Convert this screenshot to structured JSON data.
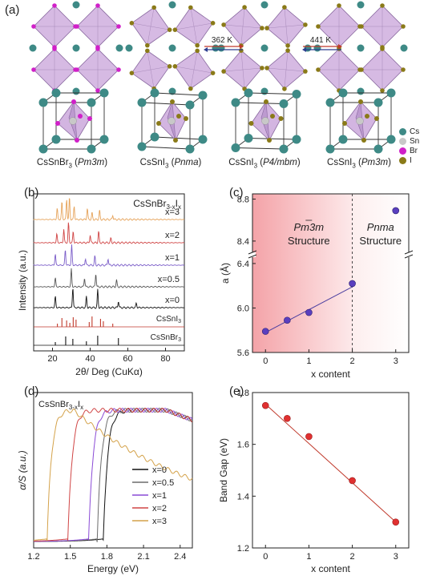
{
  "panels": {
    "a": {
      "label": "(a)",
      "transitions": [
        {
          "text": "362 K"
        },
        {
          "text": "441 K"
        }
      ],
      "captions": [
        {
          "compound": "CsSnBr",
          "sub": "3",
          "group": "Pm3m"
        },
        {
          "compound": "CsSnI",
          "sub": "3",
          "group": "Pnma"
        },
        {
          "compound": "CsSnI",
          "sub": "3",
          "group": "P4/mbm"
        },
        {
          "compound": "CsSnI",
          "sub": "3",
          "group": "Pm3m"
        }
      ],
      "atom_legend": [
        {
          "name": "Cs",
          "color": "#3e8a86"
        },
        {
          "name": "Sn",
          "color": "#c8c8c8"
        },
        {
          "name": "Br",
          "color": "#d020c8"
        },
        {
          "name": "I",
          "color": "#8a7a18"
        }
      ],
      "colors": {
        "octahedron": "#c8a3d9",
        "octahedron_edge": "#8a6aa0"
      }
    },
    "b": {
      "label": "(b)",
      "title_main": "CsSnBr",
      "title_sub": "3-x",
      "title_main2": "I",
      "title_sub2": "x",
      "xlabel": "2θ/ Deg (CuKα)",
      "ylabel": "Intensity (a.u.)",
      "curve_labels": [
        "x=3",
        "x=2",
        "x=1",
        "x=0.5",
        "x=0"
      ],
      "ref_labels": [
        "CsSnI3",
        "CsSnBr3"
      ],
      "ref_label_parts": [
        {
          "main": "CsSnI",
          "sub": "3"
        },
        {
          "main": "CsSnBr",
          "sub": "3"
        }
      ]
    },
    "c": {
      "label": "(c)",
      "region1_name": "Pm3m",
      "region1_word": "Structure",
      "region2_name": "Pnma",
      "region2_word": "Structure"
    },
    "d": {
      "label": "(d)",
      "title_main": "CsSnBr",
      "title_sub": "3-x",
      "title_main2": "I",
      "title_sub2": "x",
      "legend": [
        "x=0",
        "x=0.5",
        "x=1",
        "x=2",
        "x=3"
      ]
    },
    "e": {
      "label": "(e)"
    }
  },
  "chart_data": [
    {
      "panel": "b",
      "type": "line",
      "xlabel": "2θ/ Deg (CuKα)",
      "ylabel": "Intensity (a.u.)",
      "xlim": [
        10,
        90
      ],
      "xticks": [
        20,
        40,
        60,
        80
      ],
      "series": [
        {
          "name": "x=3",
          "color": "#e6a35a",
          "peaks": [
            [
              22.5,
              0.5
            ],
            [
              25.0,
              0.8
            ],
            [
              27.5,
              0.9
            ],
            [
              29.0,
              1.0
            ],
            [
              31.5,
              0.6
            ],
            [
              38.5,
              0.5
            ],
            [
              41.0,
              0.3
            ],
            [
              45.0,
              0.4
            ],
            [
              52.0,
              0.2
            ]
          ]
        },
        {
          "name": "x=2",
          "color": "#d04545",
          "peaks": [
            [
              22.3,
              0.4
            ],
            [
              26.0,
              0.6
            ],
            [
              28.5,
              0.9
            ],
            [
              31.0,
              0.5
            ],
            [
              40.0,
              0.35
            ],
            [
              44.5,
              0.5
            ],
            [
              51.0,
              0.2
            ]
          ]
        },
        {
          "name": "x=1",
          "color": "#7a5cc8",
          "peaks": [
            [
              21.5,
              0.5
            ],
            [
              26.8,
              0.7
            ],
            [
              30.2,
              0.9
            ],
            [
              37.5,
              0.3
            ],
            [
              42.5,
              0.4
            ],
            [
              49.5,
              0.3
            ]
          ]
        },
        {
          "name": "x=0.5",
          "color": "#555555",
          "peaks": [
            [
              21.5,
              0.4
            ],
            [
              30.0,
              0.8
            ],
            [
              37.0,
              0.4
            ],
            [
              43.0,
              0.6
            ],
            [
              54.0,
              0.3
            ]
          ]
        },
        {
          "name": "x=0",
          "color": "#111111",
          "peaks": [
            [
              21.5,
              0.5
            ],
            [
              30.8,
              0.9
            ],
            [
              38.0,
              0.5
            ],
            [
              44.0,
              0.8
            ],
            [
              55.0,
              0.3
            ],
            [
              64.5,
              0.2
            ]
          ]
        },
        {
          "name": "CsSnI3",
          "color": "#c0392b",
          "sticks": [
            22.6,
            25.0,
            27.5,
            29.2,
            31.0,
            32.5,
            39.5,
            41.0,
            45.5,
            47.0,
            52.0
          ]
        },
        {
          "name": "CsSnBr3",
          "color": "#111111",
          "sticks": [
            21.5,
            27.0,
            30.8,
            38.0,
            44.0,
            55.0
          ]
        }
      ]
    },
    {
      "panel": "c",
      "type": "scatter",
      "xlabel": "x content",
      "ylabel": "a (Å)",
      "xlim": [
        -0.3,
        3.3
      ],
      "xticks": [
        0,
        1,
        2,
        3
      ],
      "yticks_lower": [
        5.6,
        6.0,
        6.4
      ],
      "yticks_upper": [
        8.4,
        8.8
      ],
      "ylim_lower": [
        5.6,
        6.45
      ],
      "ylim_upper": [
        8.3,
        8.85
      ],
      "axis_break": true,
      "boundary_x": 2,
      "x": [
        0,
        0.5,
        1,
        2,
        3
      ],
      "y": [
        5.79,
        5.89,
        5.96,
        6.22,
        8.69
      ],
      "fit_x": [
        0,
        2
      ],
      "fit_y": [
        5.78,
        6.19
      ]
    },
    {
      "panel": "d",
      "type": "line",
      "xlabel": "Energy (eV)",
      "ylabel": "α/S (a.u.)",
      "xlim": [
        1.2,
        2.5
      ],
      "xticks": [
        1.2,
        1.5,
        1.8,
        2.1,
        2.4
      ],
      "series": [
        {
          "name": "x=0",
          "color": "#111111",
          "onset": 1.77
        },
        {
          "name": "x=0.5",
          "color": "#6b6b6b",
          "onset": 1.72
        },
        {
          "name": "x=1",
          "color": "#8a4ad6",
          "onset": 1.65
        },
        {
          "name": "x=2",
          "color": "#d04545",
          "onset": 1.48
        },
        {
          "name": "x=3",
          "color": "#d4a24a",
          "onset": 1.31
        }
      ]
    },
    {
      "panel": "e",
      "type": "scatter",
      "xlabel": "x content",
      "ylabel": "Band Gap (eV)",
      "xlim": [
        -0.3,
        3.3
      ],
      "ylim": [
        1.2,
        1.8
      ],
      "xticks": [
        0,
        1,
        2,
        3
      ],
      "yticks": [
        1.2,
        1.4,
        1.6,
        1.8
      ],
      "x": [
        0,
        0.5,
        1,
        2,
        3
      ],
      "y": [
        1.75,
        1.7,
        1.63,
        1.46,
        1.3
      ],
      "fit_x": [
        0,
        3
      ],
      "fit_y": [
        1.755,
        1.3
      ]
    }
  ]
}
